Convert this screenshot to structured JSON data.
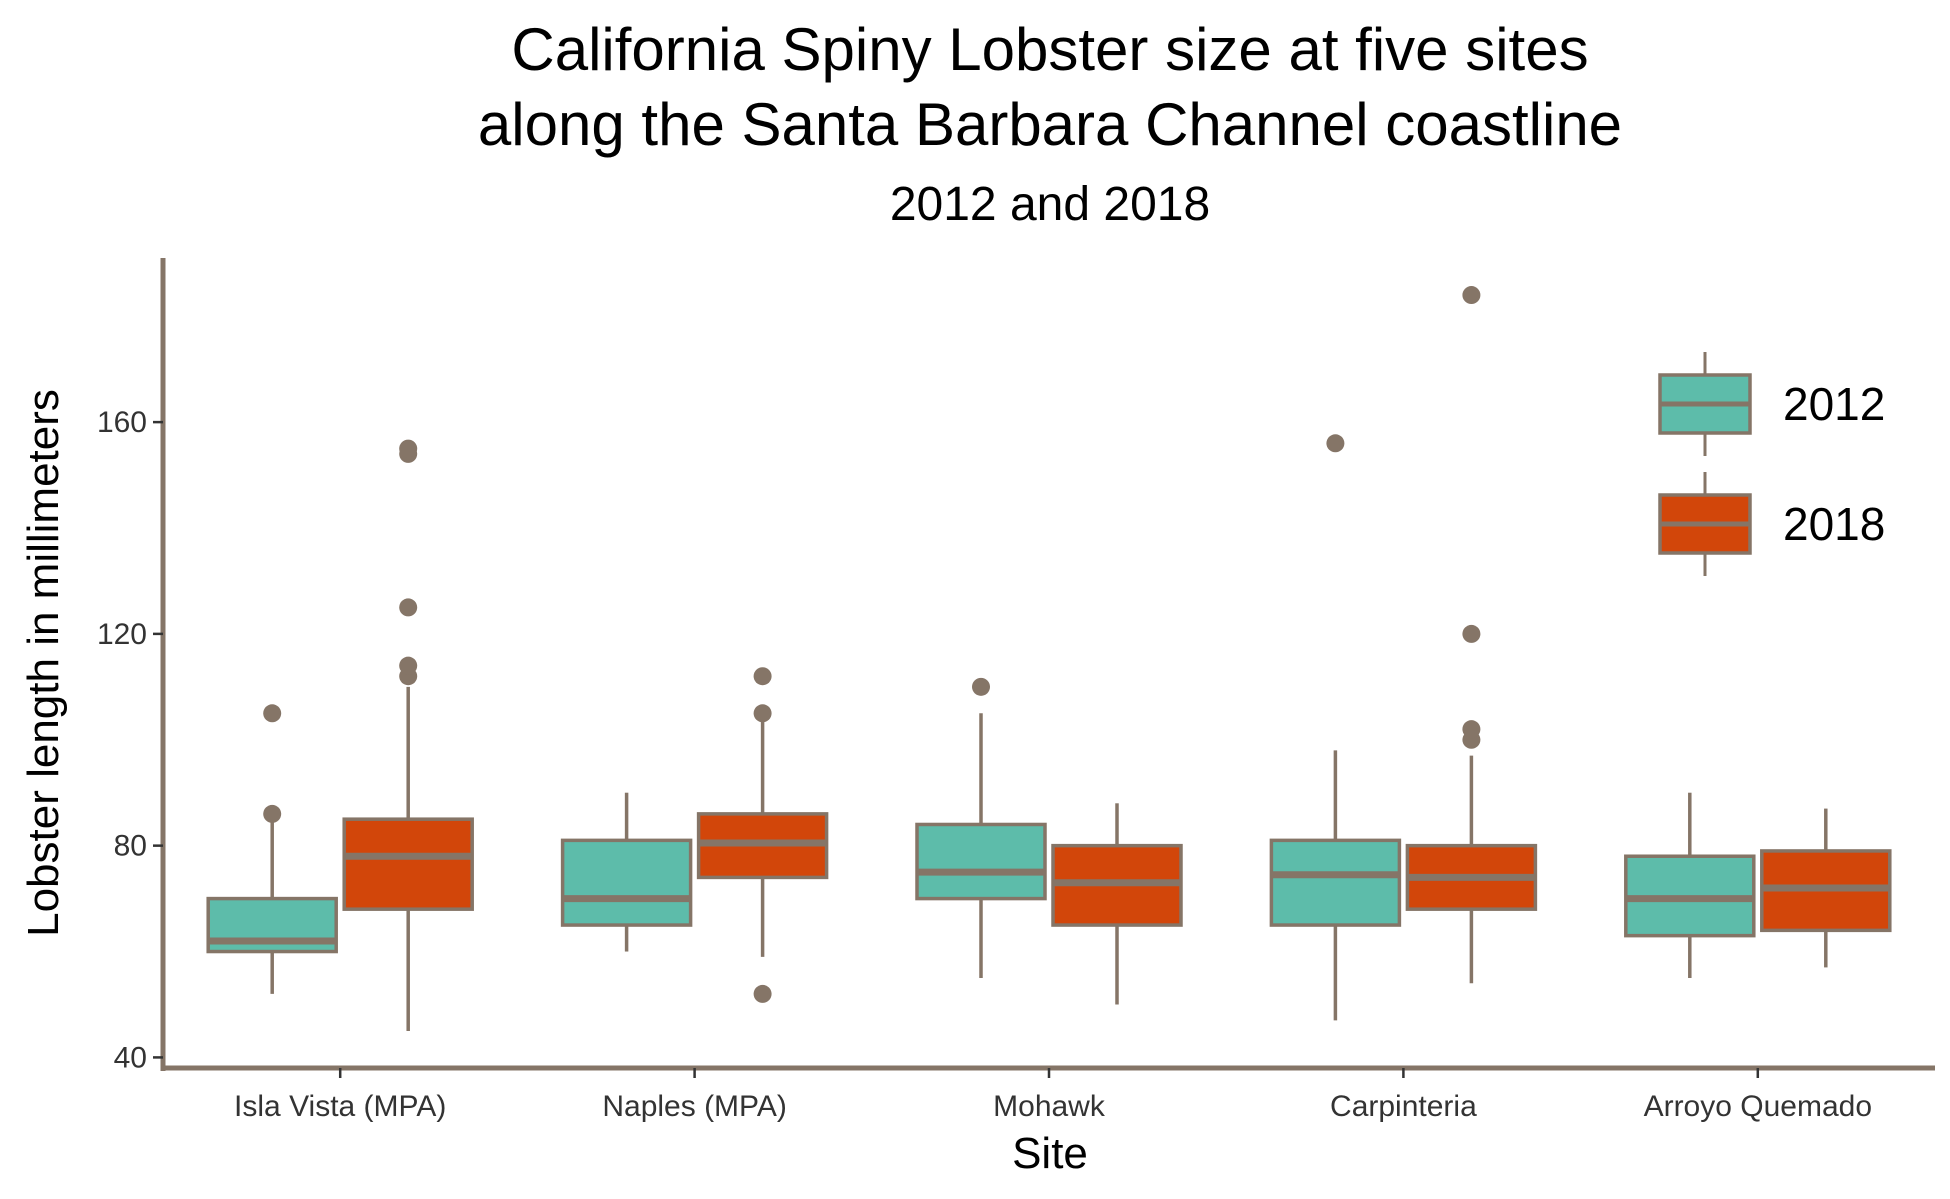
{
  "chart_data": {
    "type": "boxplot",
    "title_lines": [
      "California Spiny Lobster size at five sites",
      "along the Santa Barbara Channel coastline"
    ],
    "subtitle": "2012 and 2018",
    "xlabel": "Site",
    "ylabel": "Lobster length in millimeters",
    "ylim": [
      38,
      191
    ],
    "yticks": [
      40,
      80,
      120,
      160
    ],
    "grid": false,
    "legend_position": "top-right",
    "categories": [
      "Isla Vista (MPA)",
      "Naples (MPA)",
      "Mohawk",
      "Carpinteria",
      "Arroyo Quemado"
    ],
    "series": [
      {
        "name": "2012",
        "color": "#5DBCAA",
        "boxes": [
          {
            "whisker_low": 52,
            "q1": 60,
            "median": 62,
            "q3": 70,
            "whisker_high": 86,
            "outliers": [
              86,
              105
            ]
          },
          {
            "whisker_low": 60,
            "q1": 65,
            "median": 70,
            "q3": 81,
            "whisker_high": 90,
            "outliers": []
          },
          {
            "whisker_low": 55,
            "q1": 70,
            "median": 75,
            "q3": 84,
            "whisker_high": 105,
            "outliers": [
              110
            ]
          },
          {
            "whisker_low": 47,
            "q1": 65,
            "median": 74.5,
            "q3": 81,
            "whisker_high": 98,
            "outliers": [
              156
            ]
          },
          {
            "whisker_low": 55,
            "q1": 63,
            "median": 70,
            "q3": 78,
            "whisker_high": 90,
            "outliers": []
          }
        ]
      },
      {
        "name": "2018",
        "color": "#D2460A",
        "boxes": [
          {
            "whisker_low": 45,
            "q1": 68,
            "median": 78,
            "q3": 85,
            "whisker_high": 110,
            "outliers": [
              112,
              114,
              125,
              154,
              155
            ]
          },
          {
            "whisker_low": 59,
            "q1": 74,
            "median": 80.5,
            "q3": 86,
            "whisker_high": 104,
            "outliers": [
              52,
              105,
              112
            ]
          },
          {
            "whisker_low": 50,
            "q1": 65,
            "median": 73,
            "q3": 80,
            "whisker_high": 88,
            "outliers": []
          },
          {
            "whisker_low": 54,
            "q1": 68,
            "median": 74,
            "q3": 80,
            "whisker_high": 97,
            "outliers": [
              100,
              102,
              120,
              184
            ]
          },
          {
            "whisker_low": 57,
            "q1": 64,
            "median": 72,
            "q3": 79,
            "whisker_high": 87,
            "outliers": []
          }
        ]
      }
    ],
    "outline_color": "#857567"
  }
}
